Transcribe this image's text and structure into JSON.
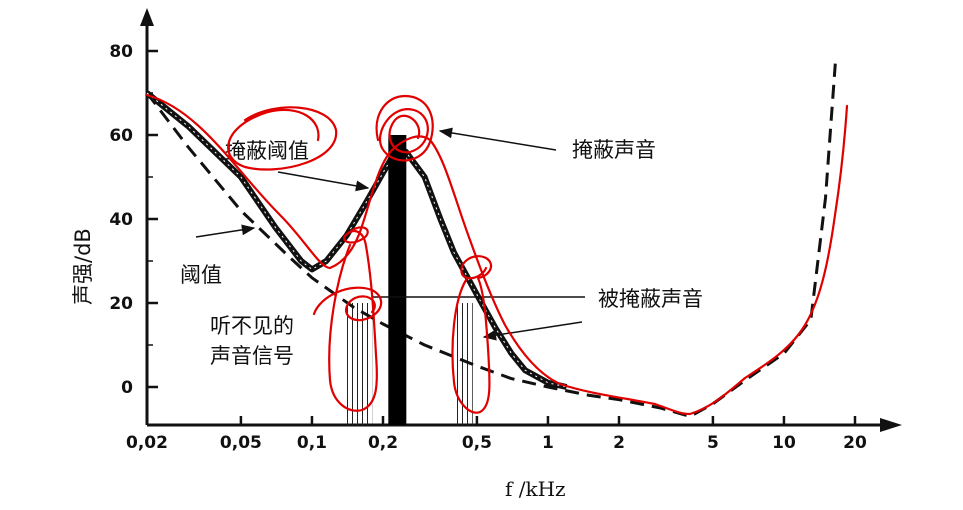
{
  "chart_data": {
    "type": "line",
    "title": "",
    "xlabel": "f /kHz",
    "ylabel": "声强/dB",
    "x_scale": "log",
    "xlim": [
      0.02,
      20
    ],
    "ylim": [
      -8,
      82
    ],
    "x_ticks": [
      {
        "value": 0.02,
        "label": "0,02"
      },
      {
        "value": 0.05,
        "label": "0,05"
      },
      {
        "value": 0.1,
        "label": "0,1"
      },
      {
        "value": 0.2,
        "label": "0,2"
      },
      {
        "value": 0.5,
        "label": "0,5"
      },
      {
        "value": 1,
        "label": "1"
      },
      {
        "value": 2,
        "label": "2"
      },
      {
        "value": 5,
        "label": "5"
      },
      {
        "value": 10,
        "label": "10"
      },
      {
        "value": 20,
        "label": "20"
      }
    ],
    "y_ticks": [
      {
        "value": 0,
        "label": "0"
      },
      {
        "value": 20,
        "label": "20"
      },
      {
        "value": 40,
        "label": "40"
      },
      {
        "value": 60,
        "label": "60"
      },
      {
        "value": 80,
        "label": "80"
      }
    ],
    "series": [
      {
        "name": "阈值",
        "style": "dashed",
        "color": "#111111",
        "points": [
          [
            0.02,
            70
          ],
          [
            0.03,
            57
          ],
          [
            0.05,
            42
          ],
          [
            0.08,
            31
          ],
          [
            0.1,
            26
          ],
          [
            0.15,
            19
          ],
          [
            0.2,
            15
          ],
          [
            0.3,
            10
          ],
          [
            0.5,
            5
          ],
          [
            0.7,
            2
          ],
          [
            1,
            0
          ],
          [
            1.5,
            -2
          ],
          [
            2,
            -3
          ],
          [
            3,
            -5
          ],
          [
            4,
            -7
          ],
          [
            5,
            -4
          ],
          [
            7,
            2
          ],
          [
            10,
            8
          ],
          [
            13,
            16
          ],
          [
            15,
            45
          ],
          [
            16.5,
            77
          ]
        ]
      },
      {
        "name": "掩蔽阈值",
        "style": "thick-solid",
        "color": "#111111",
        "points": [
          [
            0.02,
            70
          ],
          [
            0.03,
            62
          ],
          [
            0.05,
            50
          ],
          [
            0.07,
            38
          ],
          [
            0.09,
            30
          ],
          [
            0.1,
            28
          ],
          [
            0.115,
            30
          ],
          [
            0.14,
            36
          ],
          [
            0.17,
            44
          ],
          [
            0.2,
            51
          ],
          [
            0.22,
            55
          ],
          [
            0.25,
            56
          ],
          [
            0.3,
            50
          ],
          [
            0.35,
            40
          ],
          [
            0.4,
            32
          ],
          [
            0.5,
            22
          ],
          [
            0.6,
            14
          ],
          [
            0.7,
            8
          ],
          [
            0.8,
            4
          ],
          [
            1,
            1
          ],
          [
            1.2,
            0
          ]
        ]
      },
      {
        "name": "掩蔽声音",
        "style": "bar",
        "color": "#000000",
        "points": [
          [
            0.23,
            60
          ]
        ]
      },
      {
        "name": "被掩蔽声音",
        "style": "hatched-region",
        "color": "#111111",
        "regions": [
          [
            0.14,
            0.18,
            20
          ],
          [
            0.4,
            0.48,
            20
          ]
        ]
      }
    ],
    "annotations": [
      {
        "text": "掩蔽阈值"
      },
      {
        "text": "掩蔽声音"
      },
      {
        "text": "阈值"
      },
      {
        "text": "被掩蔽声音"
      },
      {
        "text": "听不见的",
        "text2": "声音信号"
      }
    ],
    "markup_color": "#e00000"
  }
}
